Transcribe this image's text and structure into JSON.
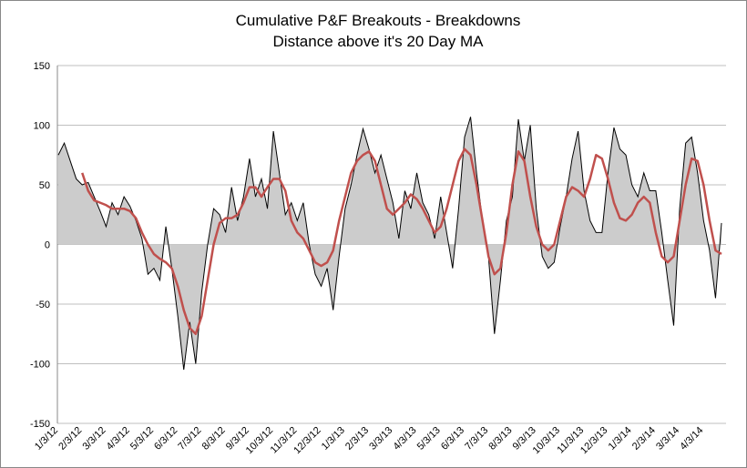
{
  "chart_data": {
    "type": "area-line",
    "title": "Cumulative P&F Breakouts - Breakdowns",
    "subtitle": "Distance above it's 20 Day MA",
    "categories": [
      "1/3/12",
      null,
      null,
      null,
      "2/3/12",
      null,
      null,
      null,
      "3/3/12",
      null,
      null,
      null,
      "4/3/12",
      null,
      null,
      null,
      "5/3/12",
      null,
      null,
      null,
      "6/3/12",
      null,
      null,
      null,
      "7/3/12",
      null,
      null,
      null,
      "8/3/12",
      null,
      null,
      null,
      "9/3/12",
      null,
      null,
      null,
      "10/3/12",
      null,
      null,
      null,
      "11/3/12",
      null,
      null,
      null,
      "12/3/12",
      null,
      null,
      null,
      "1/3/13",
      null,
      null,
      null,
      "2/3/13",
      null,
      null,
      null,
      "3/3/13",
      null,
      null,
      null,
      "4/3/13",
      null,
      null,
      null,
      "5/3/13",
      null,
      null,
      null,
      "6/3/13",
      null,
      null,
      null,
      "7/3/13",
      null,
      null,
      null,
      "8/3/13",
      null,
      null,
      null,
      "9/3/13",
      null,
      null,
      null,
      "10/3/13",
      null,
      null,
      null,
      "11/3/13",
      null,
      null,
      null,
      "12/3/13",
      null,
      null,
      null,
      "1/3/14",
      null,
      null,
      null,
      "2/3/14",
      null,
      null,
      null,
      "3/3/14",
      null,
      null,
      null,
      "4/3/14",
      null,
      null,
      null
    ],
    "series": [
      {
        "kind": "area",
        "color": "#000000",
        "fill": "#cccccc",
        "values": [
          75,
          85,
          70,
          55,
          50,
          52,
          40,
          28,
          15,
          35,
          25,
          40,
          32,
          20,
          5,
          -25,
          -20,
          -30,
          15,
          -20,
          -60,
          -105,
          -65,
          -100,
          -40,
          0,
          30,
          25,
          10,
          48,
          20,
          40,
          72,
          40,
          55,
          30,
          95,
          60,
          25,
          35,
          20,
          35,
          0,
          -25,
          -35,
          -20,
          -55,
          -10,
          30,
          50,
          75,
          97,
          80,
          60,
          75,
          55,
          35,
          5,
          45,
          30,
          60,
          35,
          25,
          5,
          40,
          10,
          -20,
          30,
          90,
          107,
          60,
          20,
          -10,
          -75,
          -30,
          20,
          40,
          105,
          70,
          100,
          30,
          -10,
          -20,
          -15,
          15,
          40,
          72,
          95,
          45,
          20,
          10,
          10,
          60,
          98,
          80,
          75,
          50,
          40,
          60,
          45,
          45,
          10,
          -30,
          -68,
          30,
          85,
          90,
          60,
          20,
          -5,
          -45,
          18
        ]
      },
      {
        "kind": "line",
        "color": "#c0504d",
        "values": [
          null,
          null,
          null,
          null,
          60,
          45,
          37,
          35,
          33,
          30,
          30,
          30,
          28,
          22,
          10,
          0,
          -8,
          -12,
          -15,
          -20,
          -35,
          -55,
          -70,
          -75,
          -60,
          -30,
          0,
          18,
          22,
          22,
          25,
          35,
          48,
          48,
          40,
          48,
          55,
          55,
          45,
          20,
          10,
          5,
          -5,
          -15,
          -18,
          -15,
          -5,
          20,
          40,
          60,
          70,
          75,
          78,
          70,
          50,
          30,
          25,
          30,
          35,
          42,
          38,
          30,
          20,
          10,
          15,
          30,
          50,
          70,
          80,
          75,
          50,
          20,
          -10,
          -25,
          -20,
          10,
          50,
          78,
          70,
          40,
          15,
          0,
          -5,
          0,
          20,
          40,
          48,
          45,
          40,
          55,
          75,
          72,
          55,
          35,
          22,
          20,
          25,
          35,
          40,
          35,
          10,
          -10,
          -15,
          -10,
          20,
          50,
          72,
          70,
          50,
          20,
          -5,
          -8
        ]
      }
    ],
    "ylim": [
      -150,
      150
    ],
    "yticks": [
      -150,
      -100,
      -50,
      0,
      50,
      100,
      150
    ],
    "grid": true
  }
}
